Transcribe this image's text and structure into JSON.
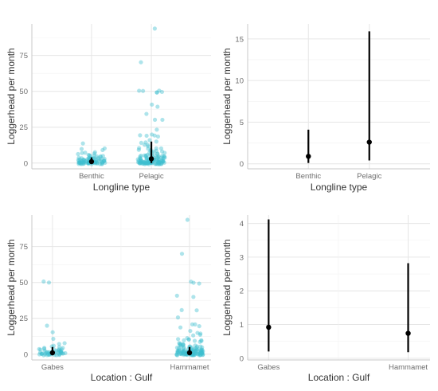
{
  "chart_data": [
    {
      "type": "scatter",
      "xlabel": "Longline type",
      "ylabel": "Loggerhead per month",
      "categories": [
        "Benthic",
        "Pelagic"
      ],
      "ylim": [
        -4,
        97
      ],
      "yticks": [
        0,
        25,
        50,
        75
      ],
      "points": [
        {
          "category": "Benthic",
          "values": [
            0,
            0,
            0,
            0,
            0,
            0,
            0,
            0,
            0,
            0,
            0,
            0,
            0,
            0,
            0,
            0,
            0,
            0,
            0,
            0,
            0,
            0,
            0,
            0,
            0,
            0,
            0,
            0,
            0,
            0,
            1,
            1,
            1,
            1,
            1,
            1,
            1,
            1,
            1,
            1,
            1,
            1,
            1,
            1,
            1,
            1,
            1,
            1,
            1,
            1,
            2,
            2,
            2,
            2,
            2,
            2,
            2,
            2,
            2,
            2,
            2,
            2,
            2,
            2,
            3,
            3,
            3,
            3,
            3,
            3,
            3,
            3,
            3,
            4,
            4,
            4,
            4,
            4,
            4,
            5,
            5,
            5,
            5,
            5,
            5,
            6,
            6,
            6,
            7,
            7,
            8,
            9,
            10,
            10,
            14
          ]
        },
        {
          "category": "Pelagic",
          "values": [
            0,
            0,
            0,
            0,
            0,
            0,
            0,
            0,
            0,
            0,
            0,
            0,
            0,
            0,
            0,
            0,
            0,
            0,
            0,
            0,
            0,
            0,
            0,
            0,
            0,
            0,
            0,
            0,
            0,
            0,
            0,
            0,
            0,
            0,
            0,
            0,
            0,
            0,
            0,
            0,
            1,
            1,
            1,
            1,
            1,
            1,
            1,
            1,
            1,
            1,
            1,
            1,
            1,
            1,
            1,
            1,
            1,
            1,
            1,
            1,
            2,
            2,
            2,
            2,
            2,
            2,
            2,
            2,
            2,
            2,
            2,
            2,
            2,
            2,
            3,
            3,
            3,
            3,
            3,
            3,
            3,
            3,
            3,
            3,
            4,
            4,
            4,
            4,
            4,
            4,
            4,
            5,
            5,
            5,
            5,
            5,
            5,
            5,
            5,
            6,
            6,
            6,
            6,
            6,
            7,
            7,
            7,
            8,
            8,
            8,
            9,
            9,
            10,
            10,
            10,
            10,
            11,
            12,
            12,
            13,
            14,
            15,
            15,
            16,
            18,
            19,
            20,
            20,
            20,
            24,
            30,
            30,
            35,
            40,
            40,
            50,
            50,
            50,
            50,
            50,
            50,
            70,
            94
          ]
        }
      ],
      "summary": [
        {
          "category": "Benthic",
          "mean": 1,
          "lower": 0,
          "upper": 4
        },
        {
          "category": "Pelagic",
          "mean": 3,
          "lower": 0,
          "upper": 15
        }
      ]
    },
    {
      "type": "scatter",
      "xlabel": "Longline type",
      "ylabel": "Loggerhead per month",
      "categories": [
        "Benthic",
        "Pelagic"
      ],
      "ylim": [
        -0.6,
        16.8
      ],
      "yticks": [
        0,
        5,
        10,
        15
      ],
      "summary": [
        {
          "category": "Benthic",
          "mean": 0.9,
          "lower": 0.1,
          "upper": 4.1
        },
        {
          "category": "Pelagic",
          "mean": 2.6,
          "lower": 0.4,
          "upper": 15.9
        }
      ]
    },
    {
      "type": "scatter",
      "xlabel": "Location : Gulf",
      "ylabel": "Loggerhead per month",
      "categories": [
        "Gabes",
        "Hammamet"
      ],
      "ylim": [
        -4,
        97
      ],
      "yticks": [
        0,
        25,
        50,
        75
      ],
      "points": [
        {
          "category": "Gabes",
          "values": [
            0,
            0,
            0,
            0,
            0,
            0,
            0,
            0,
            0,
            0,
            0,
            0,
            0,
            0,
            0,
            0,
            0,
            0,
            0,
            0,
            1,
            1,
            1,
            1,
            1,
            1,
            1,
            1,
            1,
            1,
            1,
            1,
            2,
            2,
            2,
            2,
            2,
            2,
            2,
            2,
            3,
            3,
            3,
            3,
            3,
            3,
            4,
            4,
            4,
            5,
            5,
            6,
            7,
            8,
            10,
            15,
            20,
            50,
            50
          ]
        },
        {
          "category": "Hammamet",
          "values": [
            0,
            0,
            0,
            0,
            0,
            0,
            0,
            0,
            0,
            0,
            0,
            0,
            0,
            0,
            0,
            0,
            0,
            0,
            0,
            0,
            0,
            0,
            0,
            0,
            0,
            0,
            0,
            0,
            0,
            0,
            0,
            0,
            0,
            0,
            0,
            0,
            0,
            0,
            0,
            0,
            1,
            1,
            1,
            1,
            1,
            1,
            1,
            1,
            1,
            1,
            1,
            1,
            1,
            1,
            1,
            1,
            1,
            1,
            1,
            1,
            1,
            1,
            2,
            2,
            2,
            2,
            2,
            2,
            2,
            2,
            2,
            2,
            2,
            2,
            2,
            2,
            2,
            3,
            3,
            3,
            3,
            3,
            3,
            3,
            3,
            3,
            3,
            3,
            4,
            4,
            4,
            4,
            4,
            4,
            4,
            4,
            5,
            5,
            5,
            5,
            5,
            5,
            5,
            6,
            6,
            6,
            6,
            6,
            7,
            7,
            7,
            8,
            8,
            8,
            9,
            9,
            10,
            10,
            10,
            10,
            11,
            12,
            13,
            14,
            15,
            15,
            16,
            18,
            20,
            20,
            20,
            25,
            30,
            30,
            40,
            40,
            50,
            50,
            50,
            70,
            94
          ]
        }
      ],
      "summary": [
        {
          "category": "Gabes",
          "mean": 1,
          "lower": 0,
          "upper": 5
        },
        {
          "category": "Hammamet",
          "mean": 1,
          "lower": 0,
          "upper": 5
        }
      ]
    },
    {
      "type": "scatter",
      "xlabel": "Location : Gulf",
      "ylabel": "Loggerhead per month",
      "categories": [
        "Gabes",
        "Hammamet"
      ],
      "ylim": [
        -0.05,
        4.25
      ],
      "yticks": [
        0,
        1,
        2,
        3,
        4
      ],
      "summary": [
        {
          "category": "Gabes",
          "mean": 0.92,
          "lower": 0.2,
          "upper": 4.12
        },
        {
          "category": "Hammamet",
          "mean": 0.74,
          "lower": 0.18,
          "upper": 2.82
        }
      ]
    }
  ]
}
